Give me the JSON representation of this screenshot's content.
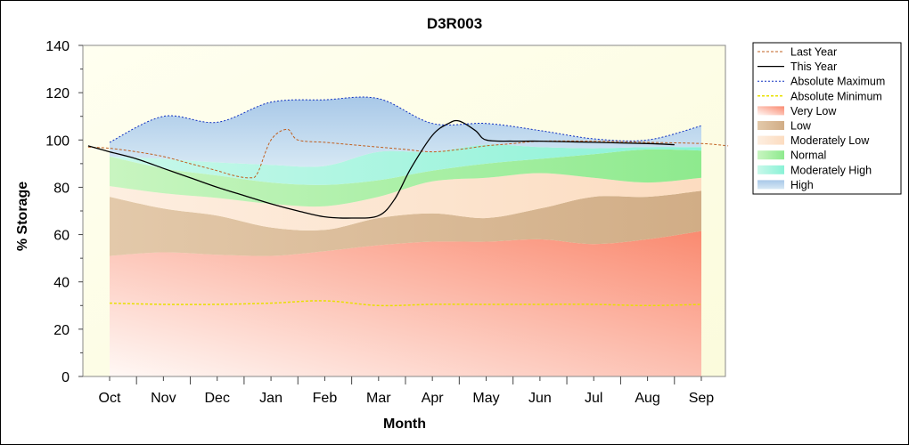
{
  "chart_data": {
    "type": "area",
    "title": "D3R003",
    "xlabel": "Month",
    "ylabel": "% Storage",
    "ylim": [
      0,
      140
    ],
    "yticks": [
      0,
      20,
      40,
      60,
      80,
      100,
      120,
      140
    ],
    "categories": [
      "Oct",
      "Nov",
      "Dec",
      "Jan",
      "Feb",
      "Mar",
      "Apr",
      "May",
      "Jun",
      "Jul",
      "Aug",
      "Sep"
    ],
    "grid": false,
    "legend_position": "right",
    "bands": [
      {
        "name": "Very Low",
        "color": "#fa8a70",
        "lower": [
          0,
          0,
          0,
          0,
          0,
          0,
          0,
          0,
          0,
          0,
          0,
          0
        ],
        "upper": [
          51,
          52.5,
          51.5,
          51,
          53,
          55.5,
          57,
          57,
          58,
          56,
          58,
          61.5
        ]
      },
      {
        "name": "Low",
        "color": "#d6b692",
        "lower": [
          51,
          52.5,
          51.5,
          51,
          53,
          55.5,
          57,
          57,
          58,
          56,
          58,
          61.5
        ],
        "upper": [
          76,
          71,
          68,
          63,
          62,
          67,
          69,
          67,
          71,
          76,
          76,
          78.5
        ]
      },
      {
        "name": "Moderately Low",
        "color": "#fde3cc",
        "lower": [
          76,
          71,
          68,
          63,
          62,
          67,
          69,
          67,
          71,
          76,
          76,
          78.5
        ],
        "upper": [
          80.5,
          77.5,
          75.5,
          73,
          72,
          76,
          82.5,
          84,
          86,
          84,
          82,
          84
        ]
      },
      {
        "name": "Normal",
        "color": "#a0f0a0",
        "lower": [
          80.5,
          77.5,
          75.5,
          73,
          72,
          76,
          82.5,
          84,
          86,
          84,
          82,
          84
        ],
        "upper": [
          93,
          88,
          85,
          82,
          81,
          83,
          87,
          90,
          92,
          94,
          96,
          95.5
        ]
      },
      {
        "name": "Moderately High",
        "color": "#92f5da",
        "lower": [
          93,
          88,
          85,
          82,
          81,
          83,
          87,
          90,
          92,
          94,
          96,
          95.5
        ],
        "upper": [
          93,
          92,
          90.5,
          89.5,
          89,
          95,
          95,
          98,
          97,
          96.5,
          97,
          97
        ]
      },
      {
        "name": "High",
        "color": "#bcd6ec",
        "lower": [
          93,
          92,
          90.5,
          89.5,
          89,
          95,
          95,
          98,
          97,
          96.5,
          97,
          97
        ],
        "upper": [
          99,
          110,
          107.5,
          116,
          117,
          117.5,
          107,
          107,
          104,
          100.5,
          100,
          106
        ]
      }
    ],
    "series": [
      {
        "name": "Last Year",
        "color": "#c06020",
        "style": "dashed",
        "x": [
          -0.4,
          0,
          0.5,
          1,
          1.5,
          2,
          2.3,
          2.6,
          2.75,
          3,
          3.3,
          3.5,
          4,
          4.5,
          5,
          5.5,
          6,
          6.5,
          7,
          7.5,
          8,
          9,
          10,
          11,
          11.5
        ],
        "y": [
          97,
          96.5,
          95,
          93,
          90,
          87,
          85,
          84,
          86,
          100,
          104.5,
          100,
          99,
          98,
          97,
          96,
          95,
          96,
          97.5,
          98.5,
          99.5,
          99.5,
          99,
          98.5,
          97.5
        ]
      },
      {
        "name": "This Year",
        "color": "#000000",
        "style": "solid",
        "x": [
          -0.4,
          0,
          0.5,
          1,
          1.5,
          2,
          2.5,
          3,
          3.5,
          4,
          4.5,
          5,
          5.3,
          5.6,
          6,
          6.3,
          6.5,
          6.8,
          7,
          7.5,
          8,
          9,
          10,
          10.5
        ],
        "y": [
          97.5,
          95,
          92,
          88,
          84,
          80,
          76.5,
          73,
          70,
          67.5,
          67,
          68,
          75,
          88,
          102,
          107,
          108,
          104,
          100,
          99.5,
          99.5,
          99,
          98.5,
          98
        ]
      },
      {
        "name": "Absolute Maximum",
        "color": "#1030c0",
        "style": "dotted",
        "x": [
          0,
          1,
          2,
          3,
          4,
          5,
          6,
          7,
          8,
          9,
          10,
          11
        ],
        "y": [
          99,
          110,
          107.5,
          116,
          117,
          117.5,
          107,
          107,
          104,
          100.5,
          100,
          106
        ]
      },
      {
        "name": "Absolute Minimum",
        "color": "#e8e000",
        "style": "dashed",
        "x": [
          0,
          1,
          2,
          3,
          4,
          5,
          6,
          7,
          8,
          9,
          10,
          11
        ],
        "y": [
          31,
          30.5,
          30.5,
          31,
          32,
          30,
          30.5,
          30.5,
          30.5,
          30.5,
          30,
          30.5
        ]
      }
    ],
    "legend": [
      "Last Year",
      "This Year",
      "Absolute Maximum",
      "Absolute Minimum",
      "Very Low",
      "Low",
      "Moderately Low",
      "Normal",
      "Moderately High",
      "High"
    ]
  }
}
